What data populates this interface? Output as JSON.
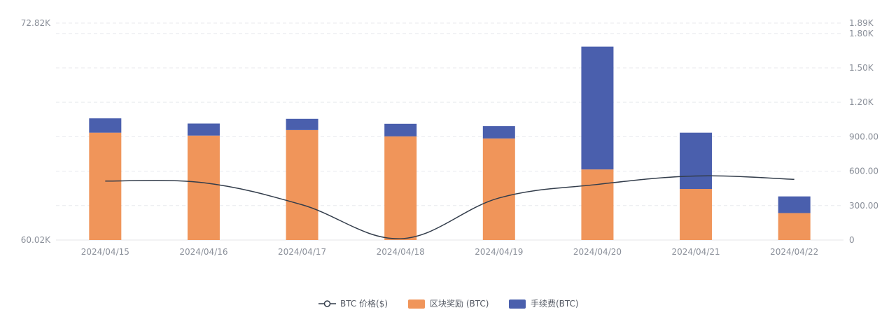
{
  "chart_data": {
    "type": "bar",
    "stacked": true,
    "categories": [
      "2024/04/15",
      "2024/04/16",
      "2024/04/17",
      "2024/04/18",
      "2024/04/19",
      "2024/04/20",
      "2024/04/21",
      "2024/04/22"
    ],
    "series": [
      {
        "name": "区块奖励 (BTC)",
        "axis": "right",
        "type": "bar",
        "color": "#f0955a",
        "values": [
          935,
          910,
          958,
          903,
          885,
          615,
          445,
          235
        ]
      },
      {
        "name": "手续费(BTC)",
        "axis": "right",
        "type": "bar",
        "color": "#4a5fad",
        "values": [
          125,
          105,
          98,
          110,
          108,
          1070,
          490,
          145
        ]
      },
      {
        "name": "BTC 价格($)",
        "axis": "left",
        "type": "line",
        "color": "#333d4b",
        "values": [
          63.5,
          63.4,
          62.1,
          60.1,
          62.5,
          63.3,
          63.8,
          63.6
        ]
      }
    ],
    "left_axis": {
      "min": 60.02,
      "max": 72.82,
      "tick_labels": [
        "72.82K",
        "60.02K"
      ]
    },
    "right_axis": {
      "min": 0,
      "max": 1890,
      "tick_labels": [
        "1.89K",
        "1.80K",
        "1.50K",
        "1.20K",
        "900.00",
        "600.00",
        "300.00",
        "0"
      ]
    },
    "legend_position": "bottom-center"
  }
}
